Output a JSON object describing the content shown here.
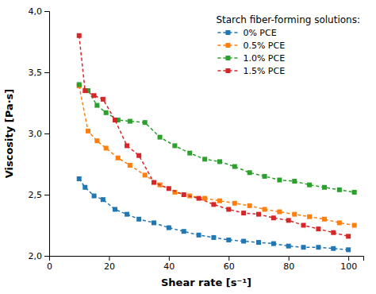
{
  "chart_data": {
    "type": "line",
    "title": "Starch fiber-forming solutions:",
    "x_label": "Shear rate [s⁻¹]",
    "y_label": "Viscosity [Pa·s]",
    "xlim": [
      0,
      105
    ],
    "ylim": [
      2.0,
      4.0
    ],
    "xticks": [
      0,
      20,
      40,
      60,
      80,
      100
    ],
    "yticks": [
      {
        "value": 2.0,
        "label": "2,0"
      },
      {
        "value": 2.5,
        "label": "2,5"
      },
      {
        "value": 3.0,
        "label": "3,0"
      },
      {
        "value": 3.5,
        "label": "3,5"
      },
      {
        "value": 4.0,
        "label": "4,0"
      }
    ],
    "grid": false,
    "legend": "upper right",
    "marker": "square",
    "line_style": "dashed",
    "series": [
      {
        "name": "0% PCE",
        "x": [
          10,
          12,
          15,
          18,
          22,
          26,
          30,
          35,
          40,
          45,
          50,
          55,
          60,
          65,
          70,
          75,
          80,
          85,
          90,
          95,
          100
        ],
        "values": [
          2.63,
          2.56,
          2.49,
          2.46,
          2.38,
          2.34,
          2.3,
          2.27,
          2.23,
          2.2,
          2.17,
          2.15,
          2.13,
          2.12,
          2.11,
          2.1,
          2.08,
          2.07,
          2.07,
          2.06,
          2.05
        ]
      },
      {
        "name": "0.5% PCE",
        "x": [
          10,
          13,
          16,
          19,
          23,
          27,
          32,
          37,
          42,
          47,
          52,
          57,
          62,
          67,
          72,
          77,
          82,
          87,
          92,
          97,
          102
        ],
        "values": [
          3.39,
          3.02,
          2.94,
          2.88,
          2.8,
          2.74,
          2.66,
          2.58,
          2.52,
          2.49,
          2.47,
          2.45,
          2.43,
          2.41,
          2.38,
          2.36,
          2.34,
          2.32,
          2.3,
          2.27,
          2.25
        ]
      },
      {
        "name": "1.0% PCE",
        "x": [
          10,
          13,
          16,
          19,
          23,
          27,
          32,
          37,
          42,
          47,
          52,
          57,
          62,
          67,
          72,
          77,
          82,
          87,
          92,
          97,
          102
        ],
        "values": [
          3.4,
          3.35,
          3.23,
          3.17,
          3.11,
          3.1,
          3.09,
          2.97,
          2.9,
          2.84,
          2.79,
          2.77,
          2.73,
          2.68,
          2.65,
          2.62,
          2.61,
          2.58,
          2.56,
          2.54,
          2.52
        ]
      },
      {
        "name": "1.5% PCE",
        "x": [
          10,
          12,
          15,
          18,
          22,
          26,
          30,
          35,
          40,
          45,
          50,
          55,
          60,
          65,
          70,
          75,
          80,
          85,
          90,
          95,
          100
        ],
        "values": [
          3.8,
          3.35,
          3.31,
          3.28,
          3.11,
          2.9,
          2.82,
          2.6,
          2.55,
          2.5,
          2.47,
          2.42,
          2.38,
          2.35,
          2.34,
          2.31,
          2.29,
          2.25,
          2.22,
          2.19,
          2.16
        ]
      }
    ]
  }
}
